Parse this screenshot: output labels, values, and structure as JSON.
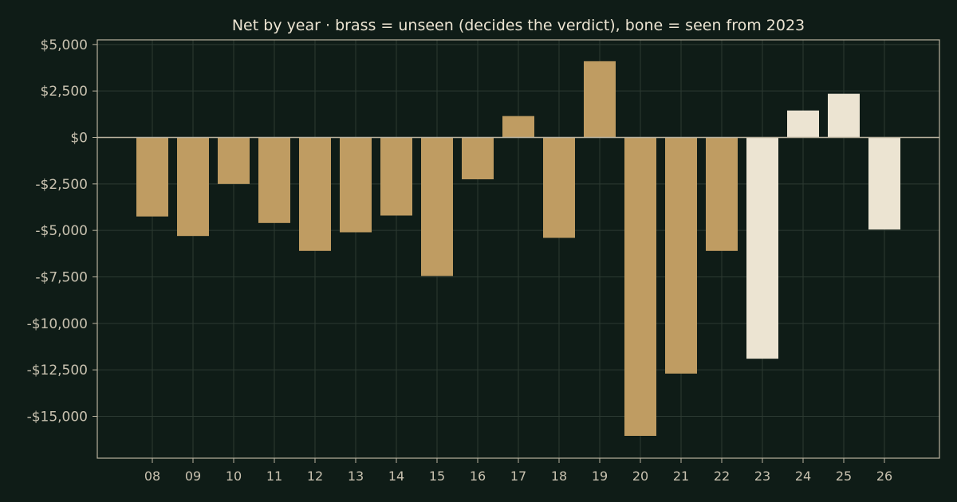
{
  "colors": {
    "background": "#0f1c17",
    "unseen": "#bf9c62",
    "seen": "#ece4d2",
    "text": "#ece4d2"
  },
  "chart_data": {
    "type": "bar",
    "title": "Net by year  ·  brass = unseen (decides the verdict), bone = seen from 2023",
    "xlabel": "",
    "ylabel": "",
    "categories": [
      "08",
      "09",
      "10",
      "11",
      "12",
      "13",
      "14",
      "15",
      "16",
      "17",
      "18",
      "19",
      "20",
      "21",
      "22",
      "23",
      "24",
      "25",
      "26"
    ],
    "values": [
      -4250,
      -5300,
      -2500,
      -4600,
      -6100,
      -5100,
      -4200,
      -7450,
      -2250,
      1150,
      -5400,
      4100,
      -16050,
      -12700,
      -6100,
      -11900,
      1450,
      2350,
      -4950
    ],
    "groups": [
      "unseen",
      "unseen",
      "unseen",
      "unseen",
      "unseen",
      "unseen",
      "unseen",
      "unseen",
      "unseen",
      "unseen",
      "unseen",
      "unseen",
      "unseen",
      "unseen",
      "unseen",
      "seen",
      "seen",
      "seen",
      "seen"
    ],
    "ylim": [
      -17250,
      5250
    ],
    "yticks": [
      5000,
      2500,
      0,
      -2500,
      -5000,
      -7500,
      -10000,
      -12500,
      -15000
    ],
    "ytick_labels": [
      "$5,000",
      "$2,500",
      "$0",
      "-$2,500",
      "-$5,000",
      "-$7,500",
      "-$10,000",
      "-$12,500",
      "-$15,000"
    ],
    "grid": true,
    "legend": "none"
  }
}
